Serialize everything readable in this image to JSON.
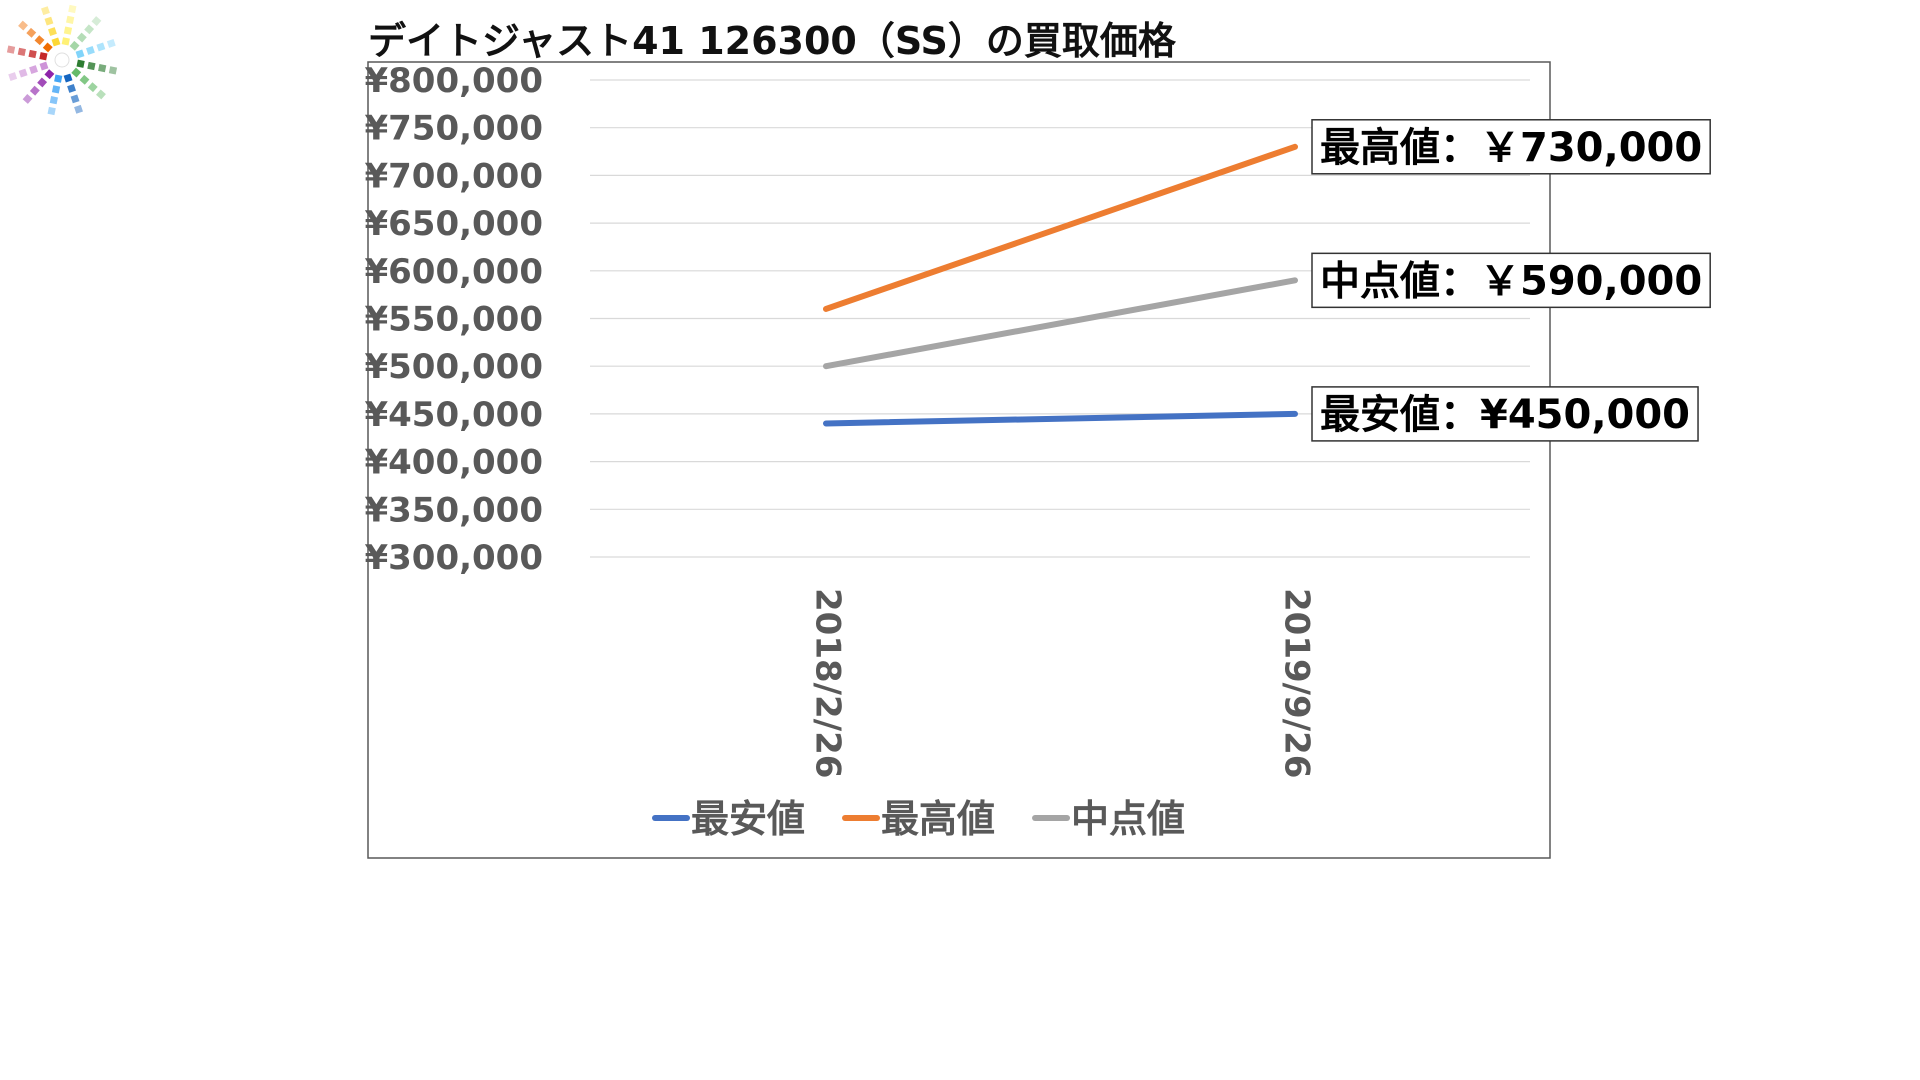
{
  "logo": {
    "name": "color-burst-logo",
    "colors": [
      "#2e7d32",
      "#66bb6a",
      "#1565c0",
      "#42a5f5",
      "#8e24aa",
      "#ce93d8",
      "#c62828",
      "#ef6c00",
      "#fdd835",
      "#fff176",
      "#a5d6a7",
      "#81d4fa"
    ]
  },
  "chart_data": {
    "type": "line",
    "title": "デイトジャスト41 126300（SS）の買取価格",
    "categories": [
      "2018/2/26",
      "2019/9/26"
    ],
    "ylim": [
      300000,
      800000
    ],
    "ytick_step": 50000,
    "ytick_labels": [
      "¥800,000",
      "¥750,000",
      "¥700,000",
      "¥650,000",
      "¥600,000",
      "¥550,000",
      "¥500,000",
      "¥450,000",
      "¥400,000",
      "¥350,000",
      "¥300,000"
    ],
    "grid": true,
    "legend_position": "bottom",
    "series": [
      {
        "name": "最安値",
        "color": "#4472c4",
        "values": [
          440000,
          450000
        ]
      },
      {
        "name": "最高値",
        "color": "#ed7d31",
        "values": [
          560000,
          730000
        ]
      },
      {
        "name": "中点値",
        "color": "#a5a5a5",
        "values": [
          500000,
          590000
        ]
      }
    ],
    "annotations": [
      {
        "series": "最高値",
        "text": "最高値：￥730,000"
      },
      {
        "series": "中点値",
        "text": "中点値：￥590,000"
      },
      {
        "series": "最安値",
        "text": "最安値：¥450,000"
      }
    ]
  }
}
